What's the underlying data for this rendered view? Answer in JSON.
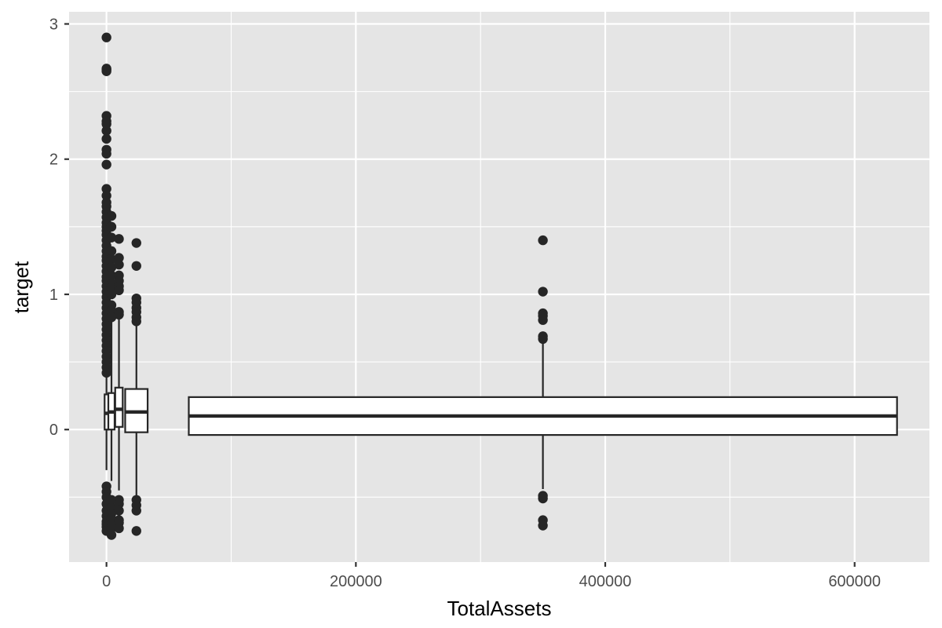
{
  "chart_data": {
    "type": "boxplot",
    "title": "",
    "xlabel": "TotalAssets",
    "ylabel": "target",
    "xlim": [
      -30000,
      660000
    ],
    "ylim": [
      -0.98,
      3.09
    ],
    "x_ticks": [
      0,
      200000,
      400000,
      600000
    ],
    "x_tick_labels": [
      "0",
      "200000",
      "400000",
      "600000"
    ],
    "x_minor_ticks": [
      100000,
      300000,
      500000
    ],
    "y_ticks": [
      0,
      1,
      2,
      3
    ],
    "y_tick_labels": [
      "0",
      "1",
      "2",
      "3"
    ],
    "y_minor_ticks": [
      -0.5,
      0.5,
      1.5,
      2.5
    ],
    "grid": true,
    "legend": "none",
    "colors": {
      "panel": "#e5e5e5",
      "grid": "#ffffff",
      "ink": "#262626",
      "box_fill": "#ffffff"
    },
    "boxes": [
      {
        "x_center": 0,
        "x_min": -1500,
        "x_max": 1500,
        "q1": 0.0,
        "median": 0.12,
        "q3": 0.26,
        "whisker_low": -0.3,
        "whisker_high": 0.85,
        "outliers": [
          2.9,
          2.67,
          2.66,
          2.65,
          2.32,
          2.28,
          2.26,
          2.21,
          2.15,
          2.07,
          2.04,
          1.96,
          1.78,
          1.73,
          1.68,
          1.65,
          1.61,
          1.57,
          1.53,
          1.5,
          1.47,
          1.44,
          1.4,
          1.36,
          1.32,
          1.28,
          1.25,
          1.21,
          1.17,
          1.13,
          1.1,
          1.06,
          1.02,
          0.98,
          0.94,
          0.9,
          0.86,
          0.82,
          0.78,
          0.74,
          0.7,
          0.66,
          0.62,
          0.58,
          0.54,
          0.5,
          0.46,
          0.42,
          -0.42,
          -0.46,
          -0.5,
          -0.55,
          -0.6,
          -0.64,
          -0.68,
          -0.7,
          -0.72,
          -0.75
        ]
      },
      {
        "x_center": 4000,
        "x_min": 1500,
        "x_max": 6500,
        "q1": 0.0,
        "median": 0.13,
        "q3": 0.27,
        "whisker_low": -0.38,
        "whisker_high": 0.8,
        "outliers": [
          1.58,
          1.5,
          1.42,
          1.32,
          1.26,
          1.2,
          1.14,
          1.08,
          1.05,
          1.0,
          0.92,
          0.88,
          0.83,
          -0.52,
          -0.58,
          -0.62,
          -0.66,
          -0.7,
          -0.73,
          -0.78
        ]
      },
      {
        "x_center": 10000,
        "x_min": 7000,
        "x_max": 13000,
        "q1": 0.02,
        "median": 0.15,
        "q3": 0.31,
        "whisker_low": -0.45,
        "whisker_high": 0.82,
        "outliers": [
          1.41,
          1.27,
          1.22,
          1.14,
          1.1,
          1.06,
          1.03,
          0.87,
          0.85,
          -0.52,
          -0.55,
          -0.6,
          -0.67,
          -0.69,
          -0.73
        ]
      },
      {
        "x_center": 24000,
        "x_min": 15000,
        "x_max": 33000,
        "q1": -0.02,
        "median": 0.13,
        "q3": 0.3,
        "whisker_low": -0.5,
        "whisker_high": 0.78,
        "outliers": [
          1.38,
          1.21,
          0.97,
          0.94,
          0.9,
          0.87,
          0.83,
          0.8,
          -0.52,
          -0.56,
          -0.6,
          -0.75
        ]
      },
      {
        "x_center": 350000,
        "x_min": 66000,
        "x_max": 634000,
        "q1": -0.04,
        "median": 0.1,
        "q3": 0.24,
        "whisker_low": -0.44,
        "whisker_high": 0.65,
        "outliers": [
          1.4,
          1.02,
          0.86,
          0.84,
          0.81,
          0.69,
          0.67,
          -0.49,
          -0.51,
          -0.67,
          -0.71
        ]
      }
    ]
  }
}
